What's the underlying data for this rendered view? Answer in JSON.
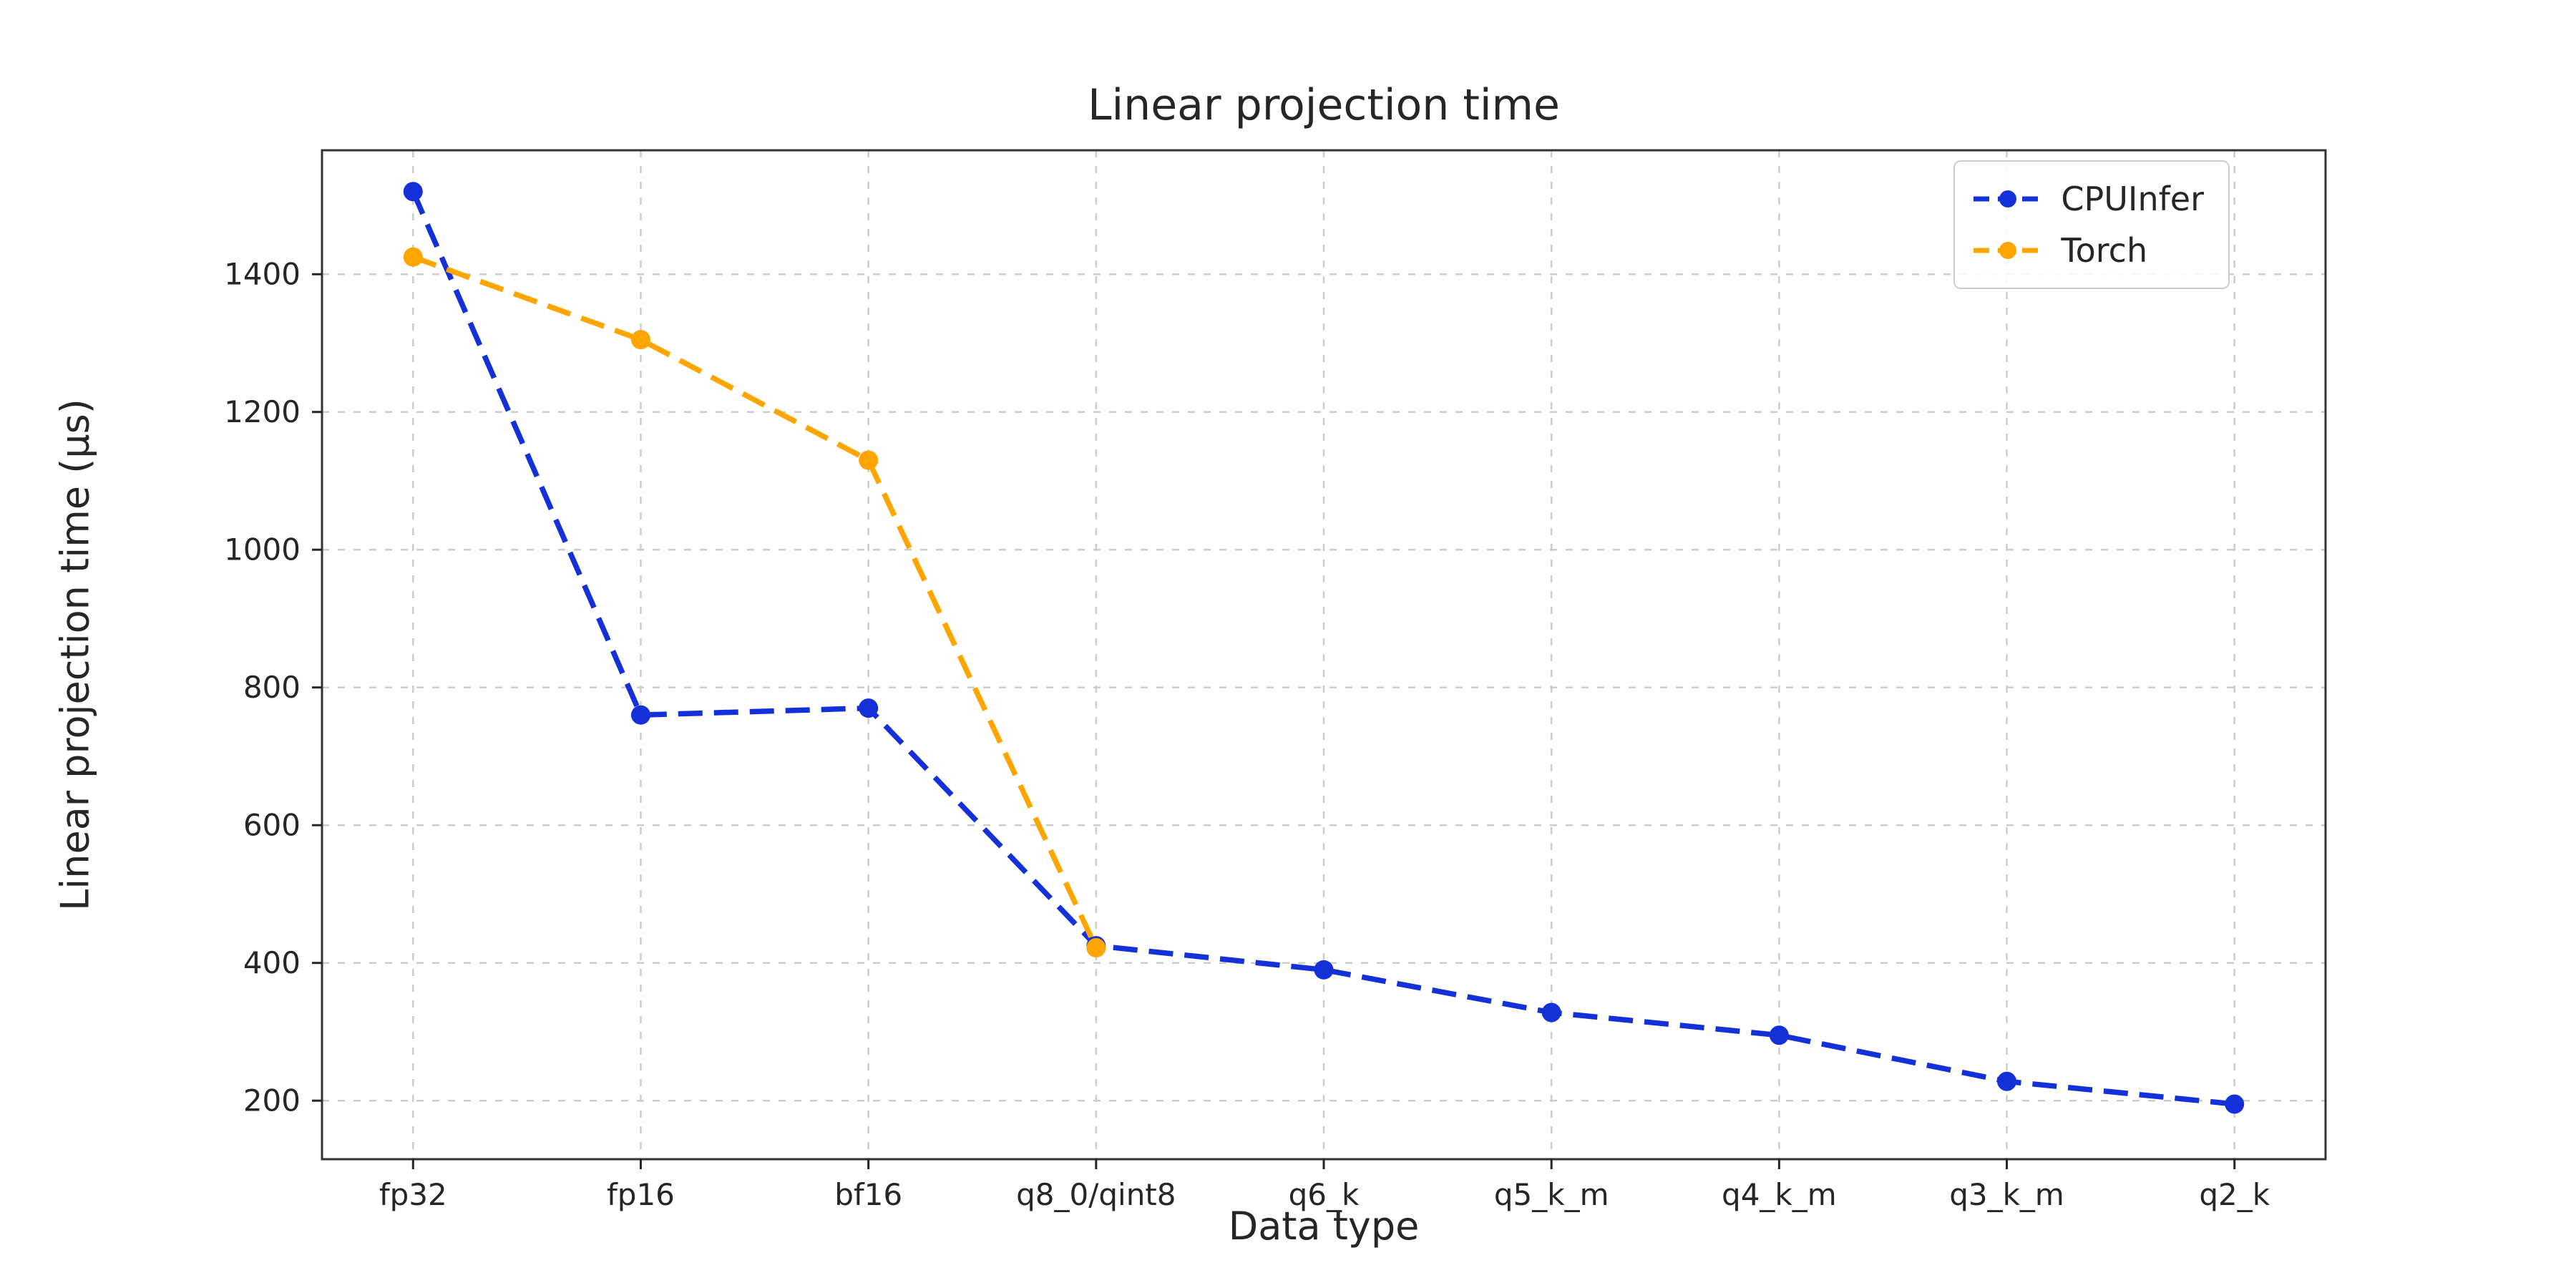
{
  "chart_data": {
    "type": "line",
    "title": "Linear projection time",
    "xlabel": "Data type",
    "ylabel": "Linear projection time (µs)",
    "categories": [
      "fp32",
      "fp16",
      "bf16",
      "q8_0/qint8",
      "q6_k",
      "q5_k_m",
      "q4_k_m",
      "q3_k_m",
      "q2_k"
    ],
    "series": [
      {
        "name": "CPUInfer",
        "color": "#1430d8",
        "values": [
          1520,
          760,
          770,
          425,
          390,
          328,
          295,
          228,
          195
        ]
      },
      {
        "name": "Torch",
        "color": "#ffa500",
        "values": [
          1425,
          1305,
          1130,
          422
        ]
      }
    ],
    "yticks": [
      200,
      400,
      600,
      800,
      1000,
      1200,
      1400
    ],
    "ylim": [
      115,
      1580
    ],
    "xlim": [
      -0.4,
      8.4
    ],
    "grid": true,
    "line_style": "dashed",
    "marker": "circle",
    "legend_position": "upper right"
  }
}
